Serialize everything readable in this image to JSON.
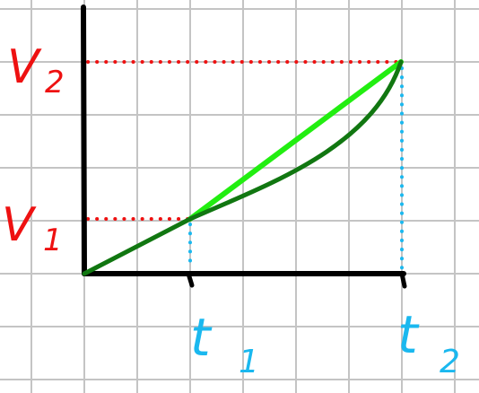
{
  "labels": {
    "v1": "V",
    "v1_sub": "1",
    "v2": "V",
    "v2_sub": "2",
    "t1": "t",
    "t1_sub": "1",
    "t2": "t",
    "t2_sub": "2"
  },
  "colors": {
    "background": "#ffffff",
    "grid": "#c4c4c4",
    "axes": "#000000",
    "velocity_labels": "#ee1111",
    "velocity_guides": "#ee1111",
    "time_labels": "#1ab8ef",
    "time_guides": "#1ab8ef",
    "chord": "#22ee11",
    "curve": "#117711"
  }
}
